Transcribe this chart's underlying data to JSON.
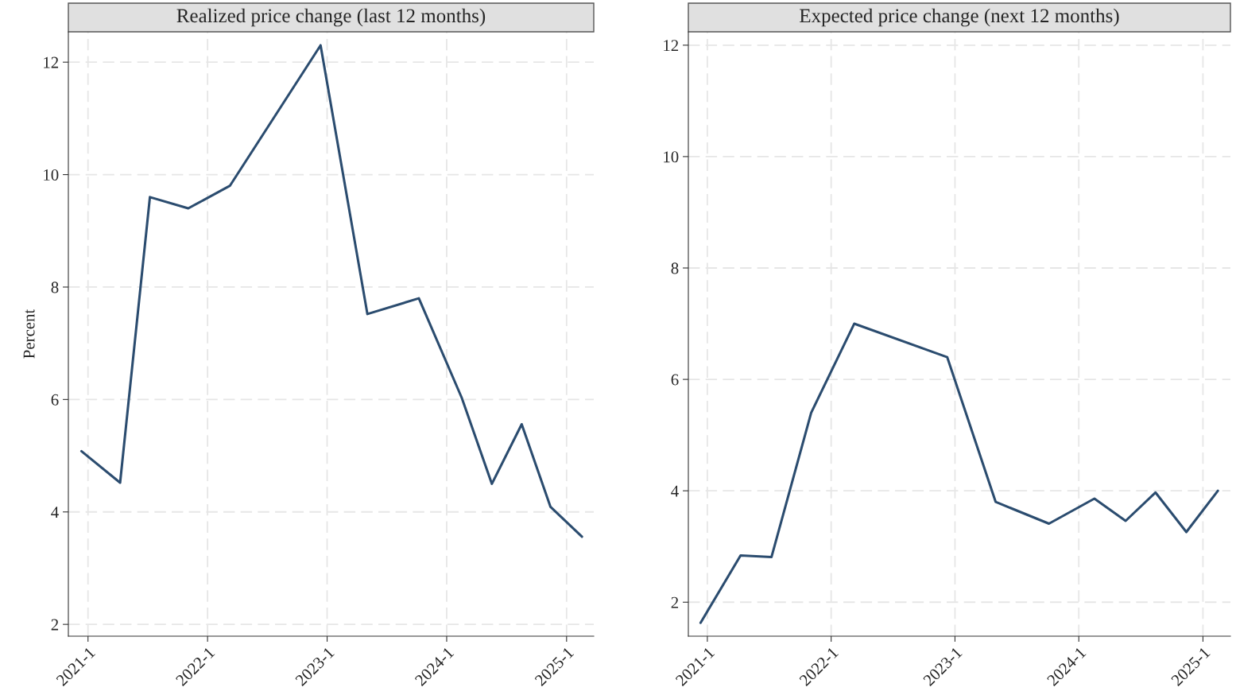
{
  "chart_data": [
    {
      "type": "line",
      "title": "Realized price change (last 12 months)",
      "ylabel": "Percent",
      "x": [
        "2020-12-12",
        "2021-04-09",
        "2021-07-09",
        "2021-11-03",
        "2022-03-10",
        "2022-12-12",
        "2023-05-04",
        "2023-10-08",
        "2024-02-16",
        "2024-05-18",
        "2024-08-17",
        "2024-11-13",
        "2025-02-17"
      ],
      "series": [
        {
          "color": "#2b4c6f",
          "values": [
            5.08,
            4.52,
            9.6,
            9.4,
            9.8,
            12.3,
            7.52,
            7.8,
            6.03,
            4.5,
            5.56,
            4.09,
            3.56
          ]
        }
      ],
      "xlim": [
        "2020-11-02",
        "2025-03-25"
      ],
      "ylim": [
        1.79,
        12.54
      ],
      "xticks": [
        {
          "value": "2021-01-01",
          "label": "2021-1"
        },
        {
          "value": "2022-01-01",
          "label": "2022-1"
        },
        {
          "value": "2023-01-01",
          "label": "2023-1"
        },
        {
          "value": "2024-01-01",
          "label": "2024-1"
        },
        {
          "value": "2025-01-01",
          "label": "2025-1"
        }
      ],
      "yticks": [
        2,
        4,
        6,
        8,
        10,
        12
      ],
      "grid": true,
      "line_style": "solid",
      "marker": "none"
    },
    {
      "type": "line",
      "title": "Expected price change (next 12 months)",
      "x": [
        "2020-12-12",
        "2021-04-09",
        "2021-07-09",
        "2021-11-03",
        "2022-03-10",
        "2022-12-09",
        "2023-05-01",
        "2023-10-05",
        "2024-02-16",
        "2024-05-18",
        "2024-08-14",
        "2024-11-13",
        "2025-02-14"
      ],
      "series": [
        {
          "color": "#2b4c6f",
          "values": [
            1.63,
            2.84,
            2.81,
            5.4,
            7.0,
            6.4,
            3.8,
            3.41,
            3.86,
            3.46,
            3.97,
            3.26,
            4.0
          ]
        }
      ],
      "xlim": [
        "2020-11-06",
        "2025-03-23"
      ],
      "ylim": [
        1.39,
        12.24
      ],
      "xticks": [
        {
          "value": "2021-01-01",
          "label": "2021-1"
        },
        {
          "value": "2022-01-01",
          "label": "2022-1"
        },
        {
          "value": "2023-01-01",
          "label": "2023-1"
        },
        {
          "value": "2024-01-01",
          "label": "2024-1"
        },
        {
          "value": "2025-01-01",
          "label": "2025-1"
        }
      ],
      "yticks": [
        2,
        4,
        6,
        8,
        10,
        12
      ],
      "grid": true,
      "line_style": "solid",
      "marker": "none"
    }
  ]
}
